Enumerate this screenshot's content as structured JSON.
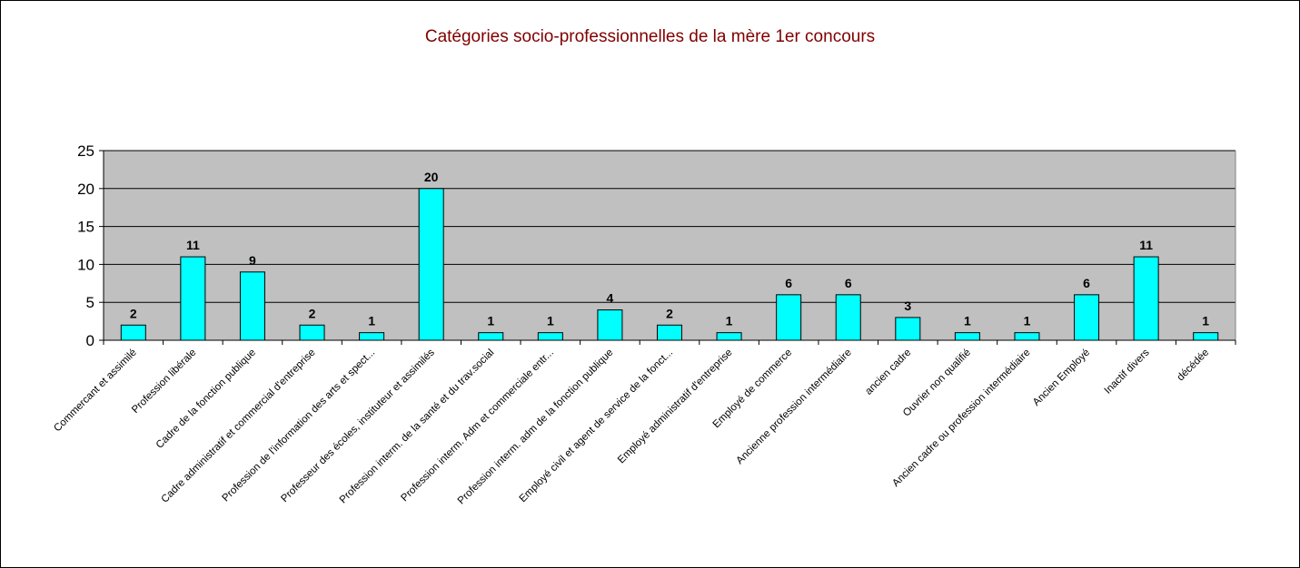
{
  "chart_data": {
    "type": "bar",
    "title": "Catégories socio-professionnelles de la mère 1er concours",
    "xlabel": "",
    "ylabel": "",
    "ylim": [
      0,
      25
    ],
    "yticks": [
      0,
      5,
      10,
      15,
      20,
      25
    ],
    "grid": true,
    "legend": "none",
    "categories": [
      "Commercant et assimilé",
      "Profession libérale",
      "Cadre de la fonction publique",
      "Cadre administratif et commercial d'entreprise",
      "Profession de l'information des arts et spect...",
      "Professeur des écoles, instituteur et assimilés",
      "Profession interm. de la santé et du trav.social",
      "Profession interm. Adm et commerciale entr...",
      "Profession interm. adm de la fonction publique",
      "Employé civil et agent de service de la fonct...",
      "Employé administratif d'entreprise",
      "Employé de commerce",
      "Ancienne profession intermédiaire",
      "ancien cadre",
      "Ouvrier non qualifié",
      "Ancien cadre ou profession intermédiaire",
      "Ancien Employé",
      "Inactif divers",
      "décédée"
    ],
    "values": [
      2,
      11,
      9,
      2,
      1,
      20,
      1,
      1,
      4,
      2,
      1,
      6,
      6,
      3,
      1,
      1,
      6,
      11,
      1
    ],
    "colors": {
      "bar_fill": "#00FFFF",
      "bar_stroke": "#000000",
      "plot_background": "#C0C0C0",
      "grid": "#000000",
      "title": "#800000"
    }
  }
}
